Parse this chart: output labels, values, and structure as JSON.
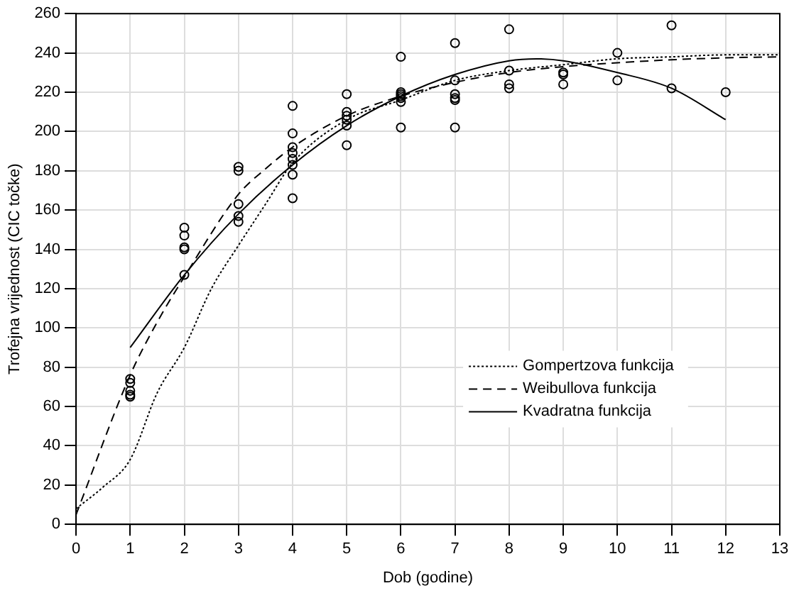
{
  "chart_data": {
    "type": "scatter",
    "xlabel": "Dob (godine)",
    "ylabel": "Trofejna vrijednost (CIC točke)",
    "xlim": [
      0,
      13
    ],
    "xticks": [
      0,
      1,
      2,
      3,
      4,
      5,
      6,
      7,
      8,
      9,
      10,
      11,
      12,
      13
    ],
    "ylim": [
      0,
      260
    ],
    "yticks": [
      0,
      20,
      40,
      60,
      80,
      100,
      120,
      140,
      160,
      180,
      200,
      220,
      240,
      260
    ],
    "grid": true,
    "legend": "bottom right",
    "series": [
      {
        "color": "#000000",
        "marker": "circle",
        "x": [
          1,
          1,
          1,
          1,
          1,
          2,
          2,
          2,
          2,
          2,
          3,
          3,
          3,
          3,
          3,
          4,
          4,
          4,
          4,
          4,
          4,
          4,
          4,
          5,
          5,
          5,
          5,
          5,
          5,
          6,
          6,
          6,
          6,
          6,
          6,
          6,
          7,
          7,
          7,
          7,
          7,
          7,
          8,
          8,
          8,
          8,
          9,
          9,
          9,
          10,
          10,
          11,
          11,
          12
        ],
        "values": [
          74,
          72,
          68,
          66,
          65,
          151,
          147,
          141,
          140,
          127,
          182,
          180,
          163,
          157,
          154,
          213,
          199,
          192,
          189,
          186,
          183,
          178,
          166,
          219,
          210,
          208,
          206,
          203,
          193,
          238,
          220,
          219,
          218,
          217,
          215,
          202,
          245,
          226,
          219,
          217,
          216,
          202,
          252,
          231,
          224,
          222,
          230,
          229,
          224,
          240,
          226,
          254,
          222,
          220
        ]
      },
      {
        "type": "line",
        "name": "Gompertzova funkcija",
        "color": "#000000",
        "line_style": "dotted",
        "marker": "none",
        "x": [
          0,
          0.5,
          1,
          1.5,
          2,
          2.5,
          3,
          3.5,
          4,
          5,
          6,
          7,
          8,
          9,
          10,
          11,
          12,
          13
        ],
        "values": [
          8,
          19,
          33,
          67,
          90,
          120,
          142,
          163,
          184,
          206,
          216,
          226,
          231,
          234,
          237,
          238,
          239,
          239
        ]
      },
      {
        "type": "line",
        "name": "Weibullova funkcija",
        "color": "#000000",
        "line_style": "dashed",
        "marker": "none",
        "x": [
          0,
          1,
          1.5,
          2,
          3,
          3.5,
          4,
          5,
          6,
          7,
          8,
          9,
          10,
          11,
          12,
          13
        ],
        "values": [
          5,
          76,
          103,
          126,
          168,
          181,
          192,
          208,
          218,
          225,
          230,
          233,
          235,
          236.5,
          237.5,
          238
        ]
      },
      {
        "type": "line",
        "name": "Kvadratna funkcija",
        "color": "#000000",
        "line_style": "solid",
        "marker": "none",
        "x": [
          1,
          2,
          3,
          4,
          5,
          6,
          7,
          8,
          8.5,
          9,
          10,
          11,
          12
        ],
        "values": [
          90,
          127,
          158,
          183,
          203,
          218,
          229,
          236,
          237,
          236,
          230,
          222,
          206
        ]
      }
    ]
  }
}
